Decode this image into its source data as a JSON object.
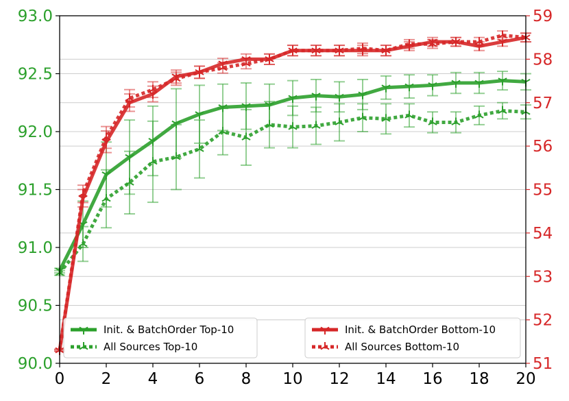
{
  "chart_data": {
    "type": "line",
    "x": [
      0,
      1,
      2,
      3,
      4,
      5,
      6,
      7,
      8,
      9,
      10,
      11,
      12,
      13,
      14,
      15,
      16,
      17,
      18,
      19,
      20
    ],
    "xlim": [
      0,
      20
    ],
    "xticks": [
      0,
      2,
      4,
      6,
      8,
      10,
      12,
      14,
      16,
      18,
      20
    ],
    "y_left": {
      "lim": [
        90.0,
        93.0
      ],
      "ticks": [
        "90.0",
        "90.5",
        "91.0",
        "91.5",
        "92.0",
        "92.5",
        "93.0"
      ],
      "color": "#2ca02c"
    },
    "y_right": {
      "lim": [
        51,
        59
      ],
      "ticks": [
        "51",
        "52",
        "53",
        "54",
        "55",
        "56",
        "57",
        "58",
        "59"
      ],
      "color": "#d62728"
    },
    "series": [
      {
        "name": "Init. & BatchOrder Top-10",
        "axis": "left",
        "color": "#2ca02c",
        "style": "solid",
        "marker": "tri_down",
        "values": [
          90.8,
          91.2,
          91.63,
          91.78,
          91.92,
          92.07,
          92.15,
          92.21,
          92.22,
          92.23,
          92.29,
          92.31,
          92.3,
          92.32,
          92.38,
          92.39,
          92.4,
          92.42,
          92.42,
          92.44,
          92.43
        ],
        "err": [
          0.02,
          0.2,
          0.28,
          0.32,
          0.3,
          0.3,
          0.25,
          0.2,
          0.2,
          0.18,
          0.15,
          0.14,
          0.13,
          0.13,
          0.1,
          0.1,
          0.09,
          0.09,
          0.09,
          0.08,
          0.07
        ]
      },
      {
        "name": "All Sources Top-10",
        "axis": "left",
        "color": "#2ca02c",
        "style": "dotted",
        "marker": "tri_up",
        "values": [
          90.78,
          91.03,
          91.42,
          91.56,
          91.74,
          91.78,
          91.85,
          92.0,
          91.95,
          92.06,
          92.04,
          92.05,
          92.08,
          92.12,
          92.11,
          92.14,
          92.08,
          92.08,
          92.14,
          92.18,
          92.17
        ],
        "err": [
          0.02,
          0.15,
          0.25,
          0.27,
          0.35,
          0.28,
          0.25,
          0.2,
          0.24,
          0.2,
          0.18,
          0.16,
          0.16,
          0.12,
          0.13,
          0.1,
          0.09,
          0.09,
          0.08,
          0.07,
          0.06
        ]
      },
      {
        "name": "Init. & BatchOrder Bottom-10",
        "axis": "right",
        "color": "#d62728",
        "style": "solid",
        "marker": "tri_down",
        "values": [
          51.3,
          54.8,
          56.1,
          57.0,
          57.2,
          57.6,
          57.7,
          57.9,
          58.0,
          58.0,
          58.2,
          58.2,
          58.2,
          58.2,
          58.2,
          58.3,
          58.4,
          58.4,
          58.3,
          58.4,
          58.5
        ],
        "err": [
          0.02,
          0.2,
          0.25,
          0.2,
          0.18,
          0.15,
          0.14,
          0.12,
          0.12,
          0.12,
          0.12,
          0.12,
          0.12,
          0.12,
          0.12,
          0.1,
          0.1,
          0.1,
          0.1,
          0.1,
          0.1
        ]
      },
      {
        "name": "All Sources Bottom-10",
        "axis": "right",
        "color": "#d62728",
        "style": "dotted",
        "marker": "tri_up",
        "values": [
          51.3,
          54.9,
          56.2,
          57.1,
          57.3,
          57.55,
          57.7,
          57.8,
          57.9,
          58.0,
          58.2,
          58.2,
          58.2,
          58.25,
          58.2,
          58.35,
          58.35,
          58.4,
          58.4,
          58.55,
          58.5
        ],
        "err": [
          0.02,
          0.2,
          0.25,
          0.2,
          0.18,
          0.15,
          0.14,
          0.12,
          0.12,
          0.12,
          0.12,
          0.12,
          0.12,
          0.12,
          0.12,
          0.1,
          0.1,
          0.1,
          0.1,
          0.1,
          0.1
        ]
      }
    ],
    "legend": [
      {
        "position": "bottom-left",
        "entries": [
          "Init. & BatchOrder Top-10",
          "All Sources Top-10"
        ]
      },
      {
        "position": "bottom-right",
        "entries": [
          "Init. & BatchOrder Bottom-10",
          "All Sources Bottom-10"
        ]
      }
    ],
    "grid": "horizontal"
  }
}
